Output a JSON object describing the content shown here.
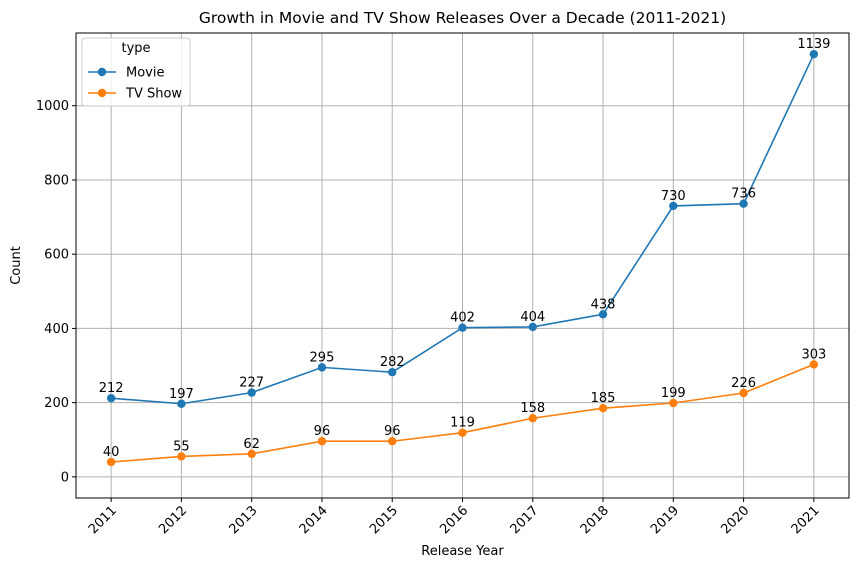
{
  "chart_data": {
    "type": "line",
    "title": "Growth in Movie and TV Show Releases Over a Decade (2011-2021)",
    "xlabel": "Release Year",
    "ylabel": "Count",
    "x": [
      "2011",
      "2012",
      "2013",
      "2014",
      "2015",
      "2016",
      "2017",
      "2018",
      "2019",
      "2020",
      "2021"
    ],
    "y_ticks": [
      0,
      200,
      400,
      600,
      800,
      1000
    ],
    "ylim": [
      -56.95,
      1196
    ],
    "grid": true,
    "legend": {
      "title": "type",
      "placement": "top-left"
    },
    "series": [
      {
        "name": "Movie",
        "color": "#1f77b4",
        "values": [
          212,
          197,
          227,
          295,
          282,
          402,
          404,
          438,
          730,
          736,
          1139
        ]
      },
      {
        "name": "TV Show",
        "color": "#ff7f0e",
        "values": [
          40,
          55,
          62,
          96,
          96,
          119,
          158,
          185,
          199,
          226,
          303
        ]
      }
    ]
  }
}
